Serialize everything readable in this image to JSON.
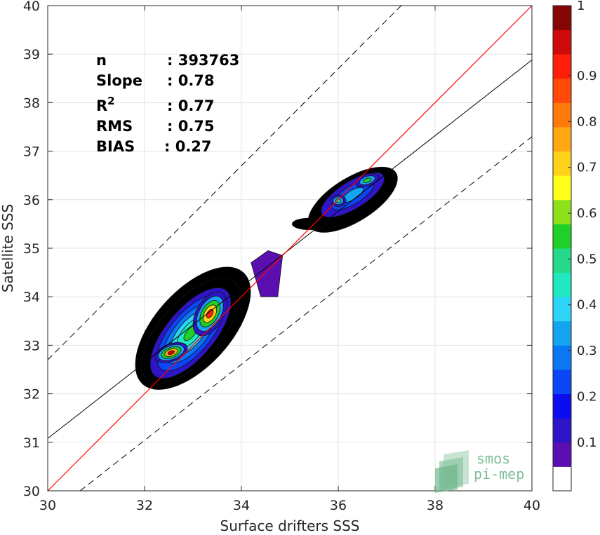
{
  "chart_data": {
    "type": "density-contour-scatter",
    "xlabel": "Surface drifters SSS",
    "ylabel": "Satellite SSS",
    "xlim": [
      30,
      40
    ],
    "ylim": [
      30,
      40
    ],
    "x_ticks": [
      "30",
      "32",
      "34",
      "36",
      "38",
      "40"
    ],
    "y_ticks": [
      "30",
      "31",
      "32",
      "33",
      "34",
      "35",
      "36",
      "37",
      "38",
      "39",
      "40"
    ],
    "grid": true,
    "stats": [
      {
        "label": "n",
        "value": ": 393763"
      },
      {
        "label": "Slope",
        "value": ": 0.78"
      },
      {
        "label": "R",
        "sup": "2",
        "value": ": 0.77"
      },
      {
        "label": "RMS",
        "value": ": 0.75"
      },
      {
        "label": "BIAS",
        "value": ": 0.27"
      }
    ],
    "lines": {
      "identity": {
        "slope": 1.0,
        "intercept": 0.0,
        "color": "#ff0000"
      },
      "fit": {
        "slope": 0.78,
        "points": [
          [
            30,
            31.08
          ],
          [
            40,
            38.88
          ]
        ],
        "color": "#000000"
      },
      "upper_bound": {
        "points": [
          [
            30,
            32.7
          ],
          [
            40,
            42.7
          ]
        ],
        "style": "dashed"
      },
      "lower_bound": {
        "points": [
          [
            30.67,
            30
          ],
          [
            40,
            37.3
          ]
        ],
        "style": "dashed"
      }
    },
    "density_peaks": [
      {
        "x": 32.55,
        "y": 32.85,
        "level": 0.95
      },
      {
        "x": 33.4,
        "y": 33.7,
        "level": 0.9
      },
      {
        "x": 36.0,
        "y": 35.98,
        "level": 0.45
      },
      {
        "x": 36.6,
        "y": 36.4,
        "level": 0.5
      }
    ],
    "colorbar": {
      "ticks": [
        "0.1",
        "0.2",
        "0.3",
        "0.4",
        "0.5",
        "0.6",
        "0.7",
        "0.8",
        "0.9",
        "1"
      ],
      "colors": [
        "#ffffff",
        "#5b0fb0",
        "#2e15c8",
        "#0c0cf0",
        "#0a46f5",
        "#0a78f5",
        "#14a4f0",
        "#2ed4f5",
        "#20e8c0",
        "#26d98a",
        "#20d028",
        "#8ee01a",
        "#ffff1a",
        "#ffd21a",
        "#ffa814",
        "#ff7a0a",
        "#ff4a0a",
        "#ff1e0a",
        "#cf0a0a",
        "#860505"
      ]
    }
  },
  "logo": {
    "line1": "smos",
    "line2": "pi-mep"
  }
}
